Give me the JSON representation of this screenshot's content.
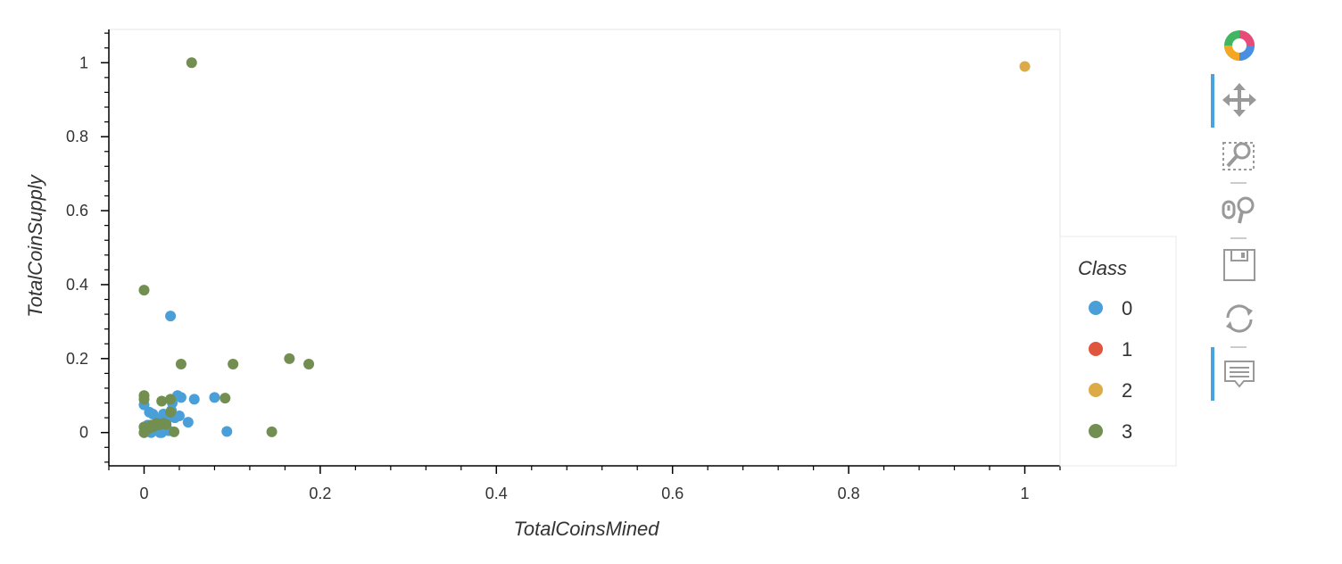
{
  "chart_data": {
    "type": "scatter",
    "xlabel": "TotalCoinsMined",
    "ylabel": "TotalCoinSupply",
    "xlim": [
      -0.04,
      1.04
    ],
    "ylim": [
      -0.09,
      1.09
    ],
    "x_ticks": [
      0,
      0.2,
      0.4,
      0.6,
      0.8,
      1
    ],
    "x_tick_labels": [
      "0",
      "0.2",
      "0.4",
      "0.6",
      "0.8",
      "1"
    ],
    "y_ticks": [
      0,
      0.2,
      0.4,
      0.6,
      0.8,
      1
    ],
    "y_tick_labels": [
      "0",
      "0.2",
      "0.4",
      "0.6",
      "0.8",
      "1"
    ],
    "grid": false,
    "legend": {
      "title": "Class",
      "placement": "right",
      "entries": [
        {
          "label": "0",
          "color": "#4a9fd8"
        },
        {
          "label": "1",
          "color": "#e0553d"
        },
        {
          "label": "2",
          "color": "#dcab48"
        },
        {
          "label": "3",
          "color": "#728f51"
        }
      ]
    },
    "series": [
      {
        "name": "0",
        "color": "#4a9fd8",
        "points": [
          [
            0.0,
            0.0
          ],
          [
            0.0,
            0.015
          ],
          [
            0.0,
            0.075
          ],
          [
            0.002,
            0.005
          ],
          [
            0.004,
            0.02
          ],
          [
            0.006,
            0.055
          ],
          [
            0.008,
            0.0
          ],
          [
            0.01,
            0.005
          ],
          [
            0.01,
            0.05
          ],
          [
            0.012,
            0.02
          ],
          [
            0.015,
            0.01
          ],
          [
            0.016,
            0.035
          ],
          [
            0.018,
            0.0
          ],
          [
            0.02,
            0.0
          ],
          [
            0.022,
            0.05
          ],
          [
            0.025,
            0.03
          ],
          [
            0.028,
            0.005
          ],
          [
            0.03,
            0.315
          ],
          [
            0.031,
            0.06
          ],
          [
            0.032,
            0.08
          ],
          [
            0.035,
            0.04
          ],
          [
            0.038,
            0.1
          ],
          [
            0.04,
            0.045
          ],
          [
            0.042,
            0.095
          ],
          [
            0.05,
            0.028
          ],
          [
            0.057,
            0.09
          ],
          [
            0.08,
            0.095
          ],
          [
            0.094,
            0.003
          ]
        ]
      },
      {
        "name": "1",
        "color": "#e0553d",
        "points": []
      },
      {
        "name": "2",
        "color": "#dcab48",
        "points": [
          [
            1.0,
            0.99
          ]
        ]
      },
      {
        "name": "3",
        "color": "#728f51",
        "points": [
          [
            0.0,
            0.385
          ],
          [
            0.0,
            0.1
          ],
          [
            0.0,
            0.09
          ],
          [
            0.0,
            0.015
          ],
          [
            0.0,
            0.0
          ],
          [
            0.002,
            0.005
          ],
          [
            0.004,
            0.01
          ],
          [
            0.006,
            0.012
          ],
          [
            0.008,
            0.02
          ],
          [
            0.01,
            0.015
          ],
          [
            0.012,
            0.02
          ],
          [
            0.014,
            0.025
          ],
          [
            0.016,
            0.02
          ],
          [
            0.018,
            0.022
          ],
          [
            0.02,
            0.085
          ],
          [
            0.022,
            0.025
          ],
          [
            0.025,
            0.022
          ],
          [
            0.03,
            0.09
          ],
          [
            0.03,
            0.055
          ],
          [
            0.034,
            0.002
          ],
          [
            0.042,
            0.185
          ],
          [
            0.054,
            1.0
          ],
          [
            0.092,
            0.093
          ],
          [
            0.101,
            0.185
          ],
          [
            0.145,
            0.002
          ],
          [
            0.165,
            0.2
          ],
          [
            0.187,
            0.185
          ]
        ]
      }
    ]
  },
  "toolbar": {
    "tools": [
      {
        "icon": "bokeh-logo-icon",
        "active": false
      },
      {
        "icon": "pan-icon",
        "active": true
      },
      {
        "icon": "box-zoom-icon",
        "active": false
      },
      {
        "icon": "wheel-zoom-icon",
        "active": false
      },
      {
        "icon": "save-icon",
        "active": false
      },
      {
        "icon": "reset-icon",
        "active": false
      },
      {
        "icon": "hover-icon",
        "active": true
      }
    ]
  }
}
